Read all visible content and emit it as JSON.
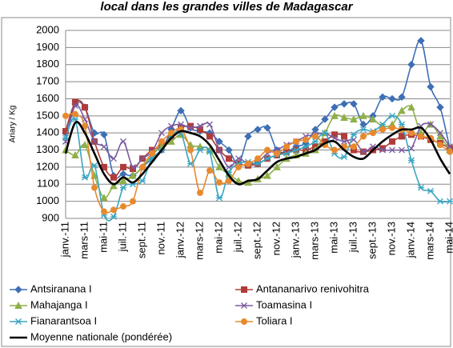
{
  "chart_data": {
    "type": "line",
    "title": "local dans les grandes villes de Madagascar",
    "y_label": "Ariary / Kg",
    "categories": [
      "janv.-11",
      null,
      "mars-11",
      null,
      "mai-11",
      null,
      "juil.-11",
      null,
      "sept.-11",
      null,
      "nov.-11",
      null,
      "janv.-12",
      null,
      "mars-12",
      null,
      "mai-12",
      null,
      "juil.-12",
      null,
      "sept.-12",
      null,
      "nov.-12",
      null,
      "janv.-13",
      null,
      "mars-13",
      null,
      "mai-13",
      null,
      "juil.-13",
      null,
      "sept.-13",
      null,
      "nov.-13",
      null,
      "janv.-14",
      null,
      "mars-14",
      null,
      "mai-14"
    ],
    "ylim": [
      900,
      2000
    ],
    "yticks": [
      900,
      1000,
      1100,
      1200,
      1300,
      1400,
      1500,
      1600,
      1700,
      1800,
      1900,
      2000
    ],
    "grid": true,
    "series": [
      {
        "name": "Antsiranana I",
        "color": "#3e6fb5",
        "marker": "diamond",
        "values": [
          1400,
          1570,
          1550,
          1400,
          1390,
          1150,
          1160,
          1150,
          1200,
          1250,
          1300,
          1420,
          1530,
          1430,
          1410,
          1400,
          1350,
          1300,
          1220,
          1380,
          1420,
          1430,
          1300,
          1290,
          1320,
          1340,
          1420,
          1480,
          1550,
          1570,
          1570,
          1450,
          1500,
          1610,
          1600,
          1610,
          1800,
          1940,
          1670,
          1550,
          1310
        ]
      },
      {
        "name": "Antananarivo renivohitra",
        "color": "#b03c3a",
        "marker": "square",
        "values": [
          1410,
          1580,
          1550,
          1350,
          1200,
          1140,
          1200,
          1190,
          1250,
          1300,
          1320,
          1380,
          1430,
          1440,
          1420,
          1380,
          1300,
          1250,
          1220,
          1210,
          1220,
          1250,
          1270,
          1290,
          1300,
          1300,
          1320,
          1350,
          1390,
          1380,
          1300,
          1290,
          1300,
          1310,
          1350,
          1380,
          1390,
          1380,
          1360,
          1340,
          1310
        ]
      },
      {
        "name": "Mahajanga I",
        "color": "#8fb04a",
        "marker": "triangle",
        "values": [
          1300,
          1270,
          1330,
          1150,
          1020,
          1090,
          1120,
          1150,
          1200,
          1270,
          1320,
          1350,
          1390,
          1330,
          1320,
          1300,
          1200,
          1160,
          1120,
          1110,
          1130,
          1150,
          1200,
          1250,
          1270,
          1280,
          1300,
          1400,
          1500,
          1490,
          1480,
          1500,
          1480,
          1440,
          1450,
          1530,
          1550,
          1400,
          1450,
          1380,
          1300
        ]
      },
      {
        "name": "Toamasina I",
        "color": "#7a5aa0",
        "marker": "x",
        "values": [
          1350,
          1560,
          1480,
          1350,
          1320,
          1250,
          1350,
          1200,
          1250,
          1290,
          1400,
          1440,
          1450,
          1430,
          1440,
          1450,
          1300,
          1200,
          1250,
          1220,
          1230,
          1280,
          1300,
          1330,
          1350,
          1380,
          1390,
          1400,
          1370,
          1350,
          1360,
          1290,
          1320,
          1300,
          1300,
          1300,
          1310,
          1440,
          1450,
          1400,
          1320
        ]
      },
      {
        "name": "Fianarantsoa I",
        "color": "#3aa5c0",
        "marker": "star",
        "values": [
          1370,
          1480,
          1140,
          1210,
          920,
          910,
          1080,
          1100,
          1120,
          1250,
          1300,
          1380,
          1400,
          1220,
          1300,
          1290,
          1020,
          1170,
          1220,
          1230,
          1220,
          1250,
          1270,
          1280,
          1300,
          1320,
          1350,
          1400,
          1280,
          1260,
          1390,
          1420,
          1410,
          1450,
          1500,
          1450,
          1240,
          1080,
          1060,
          1000,
          1000
        ]
      },
      {
        "name": "Toliara I",
        "color": "#e78a2f",
        "marker": "circle",
        "values": [
          1500,
          1510,
          1440,
          1080,
          940,
          950,
          970,
          1000,
          1200,
          1280,
          1350,
          1400,
          1420,
          1300,
          1050,
          1180,
          1110,
          1120,
          1200,
          1220,
          1250,
          1300,
          1280,
          1320,
          1350,
          1360,
          1380,
          1330,
          1300,
          1320,
          1320,
          1380,
          1400,
          1420,
          1430,
          1420,
          1400,
          1380,
          1370,
          1330,
          1290
        ]
      },
      {
        "name": "Moyenne nationale (pondérée)",
        "color": "#000000",
        "marker": "none",
        "values": [
          1280,
          1460,
          1400,
          1280,
          1160,
          1100,
          1140,
          1110,
          1160,
          1230,
          1300,
          1370,
          1410,
          1400,
          1380,
          1330,
          1240,
          1150,
          1100,
          1120,
          1130,
          1180,
          1230,
          1250,
          1260,
          1280,
          1300,
          1340,
          1350,
          1300,
          1260,
          1250,
          1300,
          1350,
          1390,
          1420,
          1420,
          1430,
          1360,
          1250,
          1160
        ]
      }
    ]
  }
}
